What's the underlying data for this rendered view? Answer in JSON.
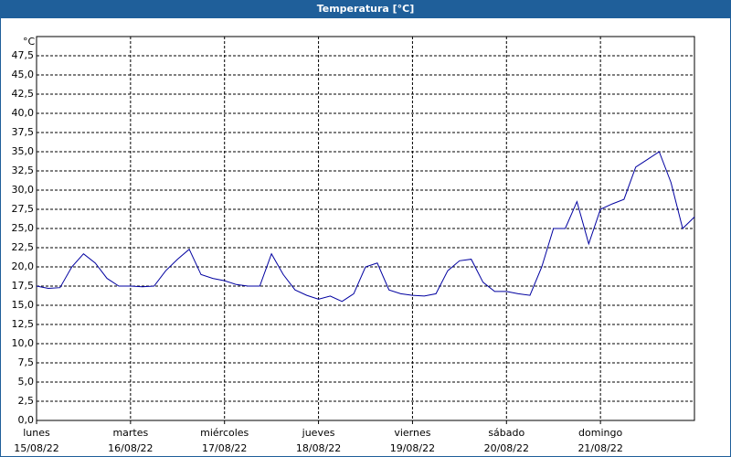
{
  "chart_data": {
    "type": "line",
    "title": "Temperatura [°C]",
    "y_unit": "°C",
    "x_labels": [
      {
        "day": "lunes",
        "date": "15/08/22"
      },
      {
        "day": "martes",
        "date": "16/08/22"
      },
      {
        "day": "miércoles",
        "date": "17/08/22"
      },
      {
        "day": "jueves",
        "date": "18/08/22"
      },
      {
        "day": "viernes",
        "date": "19/08/22"
      },
      {
        "day": "sábado",
        "date": "20/08/22"
      },
      {
        "day": "domingo",
        "date": "21/08/22"
      }
    ],
    "values": [
      17.5,
      17.2,
      17.3,
      20,
      21.7,
      20.5,
      18.5,
      17.5,
      17.5,
      17.4,
      17.5,
      19.5,
      21,
      22.3,
      19,
      18.5,
      18.2,
      17.7,
      17.5,
      17.5,
      21.7,
      19,
      17,
      16.3,
      15.8,
      16.2,
      15.5,
      16.5,
      20,
      20.5,
      17,
      16.5,
      16.3,
      16.2,
      16.5,
      19.5,
      20.8,
      21,
      18,
      16.8,
      16.8,
      16.5,
      16.3,
      20,
      25,
      25,
      28.5,
      23,
      27.5,
      28.2,
      28.8,
      33,
      34,
      35,
      31,
      25,
      26.5
    ],
    "color": "#0000a0",
    "ylim": [
      0,
      50
    ],
    "yticks": [
      {
        "value": 0,
        "label": "0,0"
      },
      {
        "value": 2.5,
        "label": "2,5"
      },
      {
        "value": 5,
        "label": "5,0"
      },
      {
        "value": 7.5,
        "label": "7,5"
      },
      {
        "value": 10,
        "label": "10,0"
      },
      {
        "value": 12.5,
        "label": "12,5"
      },
      {
        "value": 15,
        "label": "15,0"
      },
      {
        "value": 17.5,
        "label": "17,5"
      },
      {
        "value": 20,
        "label": "20,0"
      },
      {
        "value": 22.5,
        "label": "22,5"
      },
      {
        "value": 25,
        "label": "25,0"
      },
      {
        "value": 27.5,
        "label": "27,5"
      },
      {
        "value": 30,
        "label": "30,0"
      },
      {
        "value": 32.5,
        "label": "32,5"
      },
      {
        "value": 35,
        "label": "35,0"
      },
      {
        "value": 37.5,
        "label": "37,5"
      },
      {
        "value": 40,
        "label": "40,0"
      },
      {
        "value": 42.5,
        "label": "42,5"
      },
      {
        "value": 45,
        "label": "45,0"
      },
      {
        "value": 47.5,
        "label": "47,5"
      }
    ],
    "grid": true
  }
}
